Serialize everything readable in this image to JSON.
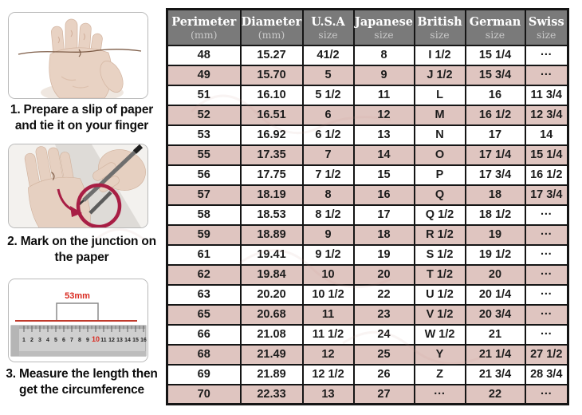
{
  "steps": [
    {
      "number": "1",
      "caption": "1. Prepare a slip of paper\nand tie it on your finger",
      "image": "hand-with-string"
    },
    {
      "number": "2",
      "caption": "2. Mark on the junction on\nthe paper",
      "image": "pen-marking-junction"
    },
    {
      "number": "3",
      "caption": "3. Measure the length then\nget the circumference",
      "image": "ruler-measurement",
      "ruler": {
        "numbers": [
          "1",
          "2",
          "3",
          "4",
          "5",
          "6",
          "7",
          "8",
          "9",
          "10",
          "11",
          "12",
          "13",
          "14",
          "15",
          "16"
        ],
        "highlight": "10",
        "label": "53mm"
      }
    }
  ],
  "table": {
    "headers": [
      {
        "line1": "Perimeter",
        "line2": "(mm)"
      },
      {
        "line1": "Diameter",
        "line2": "(mm)"
      },
      {
        "line1": "U.S.A",
        "line2": "size"
      },
      {
        "line1": "Japanese",
        "line2": "size"
      },
      {
        "line1": "British",
        "line2": "size"
      },
      {
        "line1": "German",
        "line2": "size"
      },
      {
        "line1": "Swiss",
        "line2": "size"
      }
    ],
    "rows": [
      [
        "48",
        "15.27",
        "41/2",
        "8",
        "I 1/2",
        "15 1/4",
        "···"
      ],
      [
        "49",
        "15.70",
        "5",
        "9",
        "J 1/2",
        "15 3/4",
        "···"
      ],
      [
        "51",
        "16.10",
        "5 1/2",
        "11",
        "L",
        "16",
        "11 3/4"
      ],
      [
        "52",
        "16.51",
        "6",
        "12",
        "M",
        "16 1/2",
        "12 3/4"
      ],
      [
        "53",
        "16.92",
        "6 1/2",
        "13",
        "N",
        "17",
        "14"
      ],
      [
        "55",
        "17.35",
        "7",
        "14",
        "O",
        "17 1/4",
        "15 1/4"
      ],
      [
        "56",
        "17.75",
        "7 1/2",
        "15",
        "P",
        "17 3/4",
        "16 1/2"
      ],
      [
        "57",
        "18.19",
        "8",
        "16",
        "Q",
        "18",
        "17 3/4"
      ],
      [
        "58",
        "18.53",
        "8 1/2",
        "17",
        "Q 1/2",
        "18 1/2",
        "···"
      ],
      [
        "59",
        "18.89",
        "9",
        "18",
        "R 1/2",
        "19",
        "···"
      ],
      [
        "61",
        "19.41",
        "9 1/2",
        "19",
        "S 1/2",
        "19 1/2",
        "···"
      ],
      [
        "62",
        "19.84",
        "10",
        "20",
        "T 1/2",
        "20",
        "···"
      ],
      [
        "63",
        "20.20",
        "10 1/2",
        "22",
        "U 1/2",
        "20 1/4",
        "···"
      ],
      [
        "65",
        "20.68",
        "11",
        "23",
        "V 1/2",
        "20 3/4",
        "···"
      ],
      [
        "66",
        "21.08",
        "11 1/2",
        "24",
        "W 1/2",
        "21",
        "···"
      ],
      [
        "68",
        "21.49",
        "12",
        "25",
        "Y",
        "21 1/4",
        "27 1/2"
      ],
      [
        "69",
        "21.89",
        "12 1/2",
        "26",
        "Z",
        "21 3/4",
        "28 3/4"
      ],
      [
        "70",
        "22.33",
        "13",
        "27",
        "···",
        "22",
        "···"
      ]
    ]
  },
  "colors": {
    "header_bg": "#7a7a7a",
    "header_text": "#ffffff",
    "header_subtext": "#c9c9c9",
    "row_pink": "#dfc5c0",
    "row_white": "#ffffff",
    "table_border": "#151515",
    "annotation_red": "#a81e45",
    "measure_label_red": "#d92a20",
    "caption_text": "#0e0e0e"
  }
}
